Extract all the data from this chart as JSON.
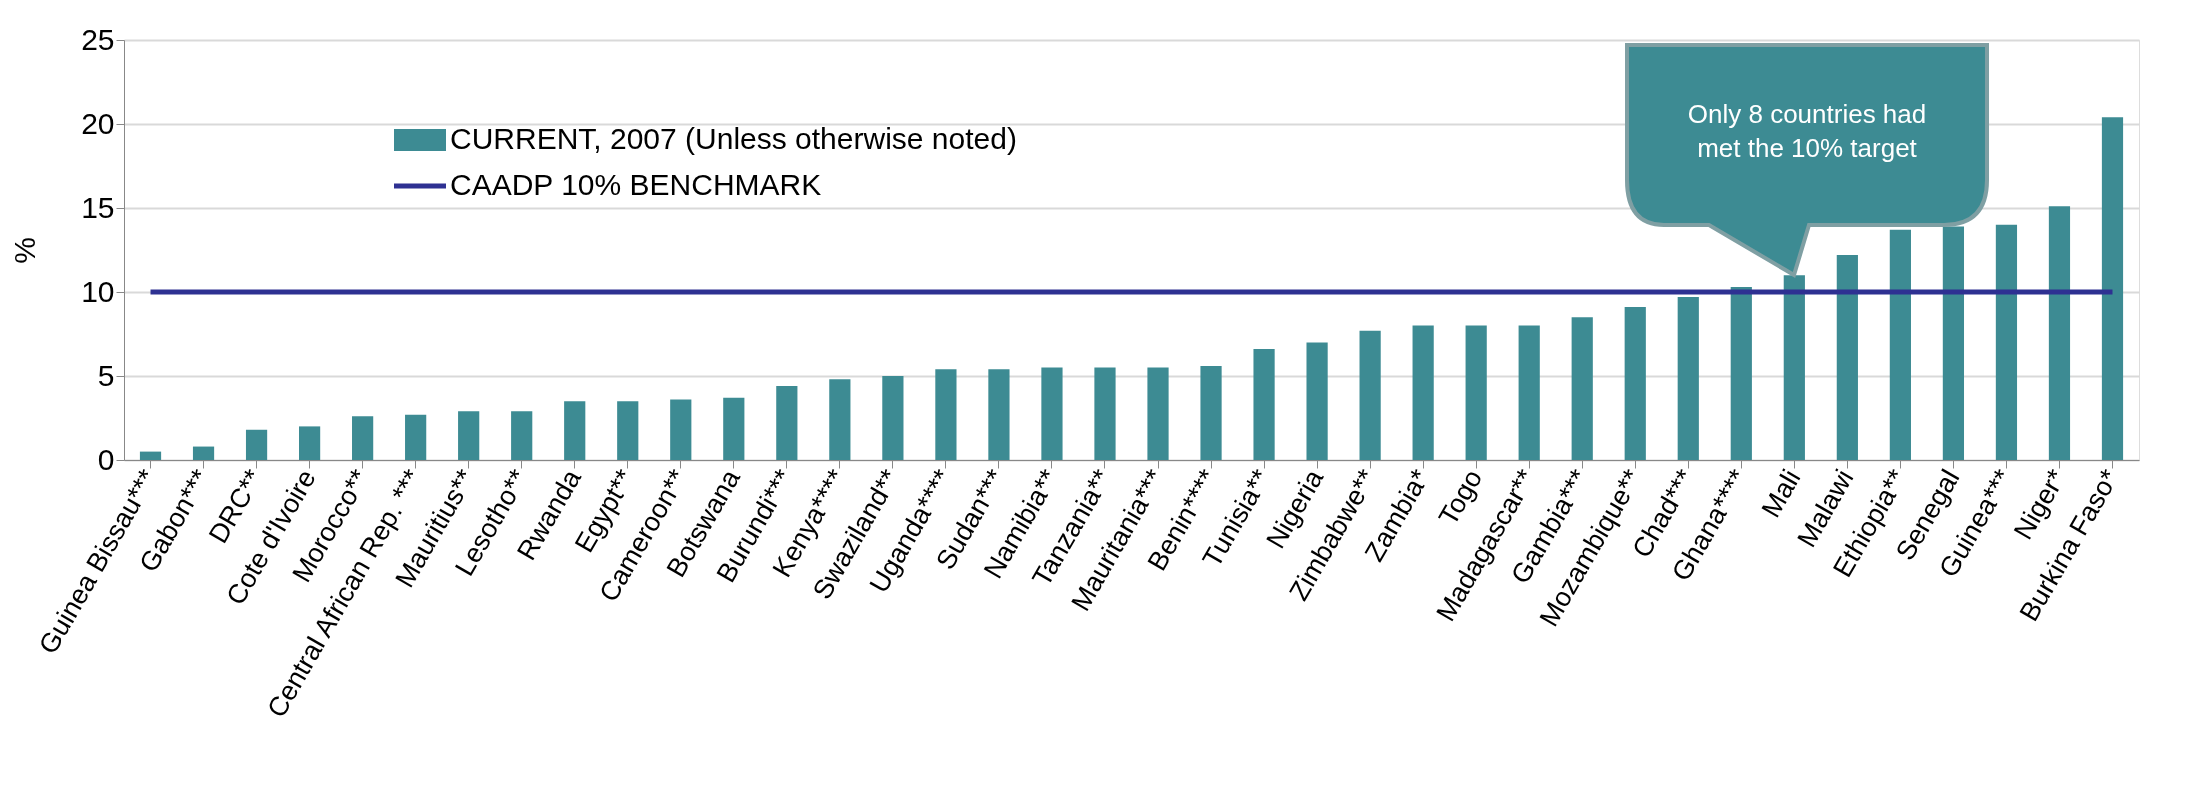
{
  "chart_data": {
    "type": "bar",
    "ylabel": "%",
    "categories": [
      "Guinea Bissau***",
      "Gabon***",
      "DRC**",
      "Cote d'Ivoire",
      "Morocco**",
      "Central African Rep. ***",
      "Mauritius**",
      "Lesotho**",
      "Rwanda",
      "Egypt**",
      "Cameroon**",
      "Botswana",
      "Burundi***",
      "Kenya****",
      "Swaziland**",
      "Uganda****",
      "Sudan***",
      "Namibia**",
      "Tanzania**",
      "Mauritania***",
      "Benin****",
      "Tunisia**",
      "Nigeria",
      "Zimbabwe**",
      "Zambia*",
      "Togo",
      "Madagascar**",
      "Gambia***",
      "Mozambique**",
      "Chad***",
      "Ghana****",
      "Mali",
      "Malawi",
      "Ethiopia**",
      "Senegal",
      "Guinea***",
      "Niger*",
      "Burkina Faso*"
    ],
    "series": [
      {
        "name": "CURRENT, 2007 (Unless otherwise noted)",
        "color": "#3d8b93",
        "values": [
          0.5,
          0.8,
          1.8,
          2.0,
          2.6,
          2.7,
          2.9,
          2.9,
          3.5,
          3.5,
          3.6,
          3.7,
          4.4,
          4.8,
          5.0,
          5.4,
          5.4,
          5.5,
          5.5,
          5.5,
          5.6,
          6.6,
          7.0,
          7.7,
          8.0,
          8.0,
          8.0,
          8.5,
          9.1,
          9.7,
          10.3,
          11.0,
          12.2,
          13.7,
          13.9,
          14.0,
          15.1,
          20.4
        ]
      },
      {
        "name": "CAADP 10% BENCHMARK",
        "type": "line",
        "color": "#2e3192",
        "values": [
          10,
          10,
          10,
          10,
          10,
          10,
          10,
          10,
          10,
          10,
          10,
          10,
          10,
          10,
          10,
          10,
          10,
          10,
          10,
          10,
          10,
          10,
          10,
          10,
          10,
          10,
          10,
          10,
          10,
          10,
          10,
          10,
          10,
          10,
          10,
          10,
          10,
          10
        ]
      }
    ],
    "ylim": [
      0,
      25
    ],
    "yticks": [
      0,
      5,
      10,
      15,
      20,
      25
    ],
    "grid": "y",
    "legend": "top left",
    "annotations": [
      "Only 8 countries had\nmet the 10% target"
    ]
  }
}
